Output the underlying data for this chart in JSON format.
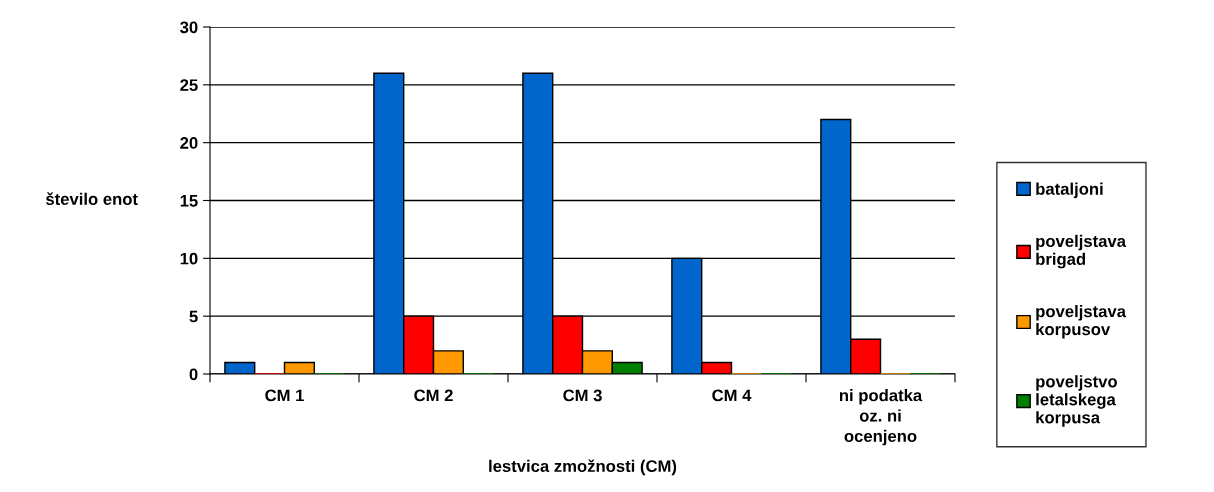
{
  "chart_data": {
    "type": "bar",
    "xlabel": "lestvica zmožnosti (CM)",
    "ylabel": "število enot",
    "categories": [
      "CM 1",
      "CM 2",
      "CM 3",
      "CM 4",
      "ni podatka\noz. ni\nocenjeno"
    ],
    "series": [
      {
        "name": "bataljoni",
        "color": "#0066cc",
        "values": [
          1,
          26,
          26,
          10,
          22
        ]
      },
      {
        "name": "poveljstava\nbrigad",
        "color": "#ff0000",
        "values": [
          0,
          5,
          5,
          1,
          3
        ]
      },
      {
        "name": "poveljstava\nkorpusov",
        "color": "#ff9900",
        "values": [
          1,
          2,
          2,
          0,
          0
        ]
      },
      {
        "name": "poveljstvo\nletalskega\nkorpusa",
        "color": "#008000",
        "values": [
          0,
          0,
          1,
          0,
          0
        ]
      }
    ],
    "ylim": [
      0,
      30
    ],
    "yticks": [
      0,
      5,
      10,
      15,
      20,
      25,
      30
    ],
    "grid": "y",
    "legend": "right"
  }
}
